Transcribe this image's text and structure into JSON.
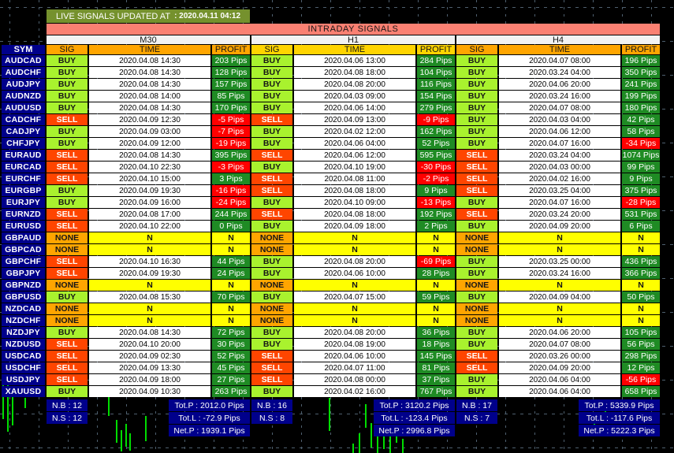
{
  "banner": {
    "label": "LIVE SIGNALS UPDATED AT",
    "time": ": 2020.04.11 04:12"
  },
  "title": "INTRADAY SIGNALS",
  "sym_header": "SYM",
  "columns": [
    "SIG",
    "TIME",
    "PROFIT"
  ],
  "timeframes": [
    {
      "label": "M30",
      "header_color": "#FFA500"
    },
    {
      "label": "H1",
      "header_color": "#FFD400"
    },
    {
      "label": "H4",
      "header_color": "#FFA500"
    }
  ],
  "rows": [
    {
      "sym": "AUDCAD",
      "signals": [
        {
          "sig": "BUY",
          "time": "2020.04.08 14:30",
          "profit": "203 Pips"
        },
        {
          "sig": "BUY",
          "time": "2020.04.06 13:00",
          "profit": "284 Pips"
        },
        {
          "sig": "BUY",
          "time": "2020.04.07 08:00",
          "profit": "196 Pips"
        }
      ]
    },
    {
      "sym": "AUDCHF",
      "signals": [
        {
          "sig": "BUY",
          "time": "2020.04.08 14:30",
          "profit": "128 Pips"
        },
        {
          "sig": "BUY",
          "time": "2020.04.08 18:00",
          "profit": "104 Pips"
        },
        {
          "sig": "BUY",
          "time": "2020.03.24 04:00",
          "profit": "350 Pips"
        }
      ]
    },
    {
      "sym": "AUDJPY",
      "signals": [
        {
          "sig": "BUY",
          "time": "2020.04.08 14:30",
          "profit": "157 Pips"
        },
        {
          "sig": "BUY",
          "time": "2020.04.08 20:00",
          "profit": "116 Pips"
        },
        {
          "sig": "BUY",
          "time": "2020.04.06 20:00",
          "profit": "241 Pips"
        }
      ]
    },
    {
      "sym": "AUDNZD",
      "signals": [
        {
          "sig": "BUY",
          "time": "2020.04.08 14:00",
          "profit": "85 Pips"
        },
        {
          "sig": "BUY",
          "time": "2020.04.03 09:00",
          "profit": "154 Pips"
        },
        {
          "sig": "BUY",
          "time": "2020.03.24 16:00",
          "profit": "199 Pips"
        }
      ]
    },
    {
      "sym": "AUDUSD",
      "signals": [
        {
          "sig": "BUY",
          "time": "2020.04.08 14:30",
          "profit": "170 Pips"
        },
        {
          "sig": "BUY",
          "time": "2020.04.06 14:00",
          "profit": "279 Pips"
        },
        {
          "sig": "BUY",
          "time": "2020.04.07 08:00",
          "profit": "180 Pips"
        }
      ]
    },
    {
      "sym": "CADCHF",
      "signals": [
        {
          "sig": "SELL",
          "time": "2020.04.09 12:30",
          "profit": "-5 Pips"
        },
        {
          "sig": "SELL",
          "time": "2020.04.09 13:00",
          "profit": "-9 Pips"
        },
        {
          "sig": "BUY",
          "time": "2020.04.03 04:00",
          "profit": "42 Pips"
        }
      ]
    },
    {
      "sym": "CADJPY",
      "signals": [
        {
          "sig": "BUY",
          "time": "2020.04.09 03:00",
          "profit": "-7 Pips"
        },
        {
          "sig": "BUY",
          "time": "2020.04.02 12:00",
          "profit": "162 Pips"
        },
        {
          "sig": "BUY",
          "time": "2020.04.06 12:00",
          "profit": "58 Pips"
        }
      ]
    },
    {
      "sym": "CHFJPY",
      "signals": [
        {
          "sig": "BUY",
          "time": "2020.04.09 12:00",
          "profit": "-19 Pips"
        },
        {
          "sig": "BUY",
          "time": "2020.04.06 04:00",
          "profit": "52 Pips"
        },
        {
          "sig": "BUY",
          "time": "2020.04.07 16:00",
          "profit": "-34 Pips"
        }
      ]
    },
    {
      "sym": "EURAUD",
      "signals": [
        {
          "sig": "SELL",
          "time": "2020.04.08 14:30",
          "profit": "395 Pips"
        },
        {
          "sig": "SELL",
          "time": "2020.04.06 12:00",
          "profit": "595 Pips"
        },
        {
          "sig": "SELL",
          "time": "2020.03.24 04:00",
          "profit": "1074 Pips"
        }
      ]
    },
    {
      "sym": "EURCAD",
      "signals": [
        {
          "sig": "SELL",
          "time": "2020.04.10 22:30",
          "profit": "-3 Pips"
        },
        {
          "sig": "BUY",
          "time": "2020.04.10 19:00",
          "profit": "-30 Pips"
        },
        {
          "sig": "SELL",
          "time": "2020.04.03 00:00",
          "profit": "99 Pips"
        }
      ]
    },
    {
      "sym": "EURCHF",
      "signals": [
        {
          "sig": "SELL",
          "time": "2020.04.10 15:00",
          "profit": "3 Pips"
        },
        {
          "sig": "SELL",
          "time": "2020.04.08 11:00",
          "profit": "-2 Pips"
        },
        {
          "sig": "SELL",
          "time": "2020.04.02 16:00",
          "profit": "9 Pips"
        }
      ]
    },
    {
      "sym": "EURGBP",
      "signals": [
        {
          "sig": "BUY",
          "time": "2020.04.09 19:30",
          "profit": "-16 Pips"
        },
        {
          "sig": "SELL",
          "time": "2020.04.08 18:00",
          "profit": "9 Pips"
        },
        {
          "sig": "SELL",
          "time": "2020.03.25 04:00",
          "profit": "375 Pips"
        }
      ]
    },
    {
      "sym": "EURJPY",
      "signals": [
        {
          "sig": "BUY",
          "time": "2020.04.09 16:00",
          "profit": "-24 Pips"
        },
        {
          "sig": "BUY",
          "time": "2020.04.10 09:00",
          "profit": "-13 Pips"
        },
        {
          "sig": "BUY",
          "time": "2020.04.07 16:00",
          "profit": "-28 Pips"
        }
      ]
    },
    {
      "sym": "EURNZD",
      "signals": [
        {
          "sig": "SELL",
          "time": "2020.04.08 17:00",
          "profit": "244 Pips"
        },
        {
          "sig": "SELL",
          "time": "2020.04.08 18:00",
          "profit": "192 Pips"
        },
        {
          "sig": "SELL",
          "time": "2020.03.24 20:00",
          "profit": "531 Pips"
        }
      ]
    },
    {
      "sym": "EURUSD",
      "signals": [
        {
          "sig": "SELL",
          "time": "2020.04.10 22:00",
          "profit": "0 Pips"
        },
        {
          "sig": "BUY",
          "time": "2020.04.09 18:00",
          "profit": "2 Pips"
        },
        {
          "sig": "BUY",
          "time": "2020.04.09 20:00",
          "profit": "6 Pips"
        }
      ]
    },
    {
      "sym": "GBPAUD",
      "signals": [
        {
          "sig": "NONE",
          "time": "N",
          "profit": "N"
        },
        {
          "sig": "NONE",
          "time": "N",
          "profit": "N"
        },
        {
          "sig": "NONE",
          "time": "N",
          "profit": "N"
        }
      ]
    },
    {
      "sym": "GBPCAD",
      "signals": [
        {
          "sig": "NONE",
          "time": "N",
          "profit": "N"
        },
        {
          "sig": "NONE",
          "time": "N",
          "profit": "N"
        },
        {
          "sig": "NONE",
          "time": "N",
          "profit": "N"
        }
      ]
    },
    {
      "sym": "GBPCHF",
      "signals": [
        {
          "sig": "SELL",
          "time": "2020.04.10 16:30",
          "profit": "44 Pips"
        },
        {
          "sig": "BUY",
          "time": "2020.04.08 20:00",
          "profit": "-69 Pips"
        },
        {
          "sig": "BUY",
          "time": "2020.03.25 00:00",
          "profit": "436 Pips"
        }
      ]
    },
    {
      "sym": "GBPJPY",
      "signals": [
        {
          "sig": "SELL",
          "time": "2020.04.09 19:30",
          "profit": "24 Pips"
        },
        {
          "sig": "BUY",
          "time": "2020.04.06 10:00",
          "profit": "28 Pips"
        },
        {
          "sig": "BUY",
          "time": "2020.03.24 16:00",
          "profit": "366 Pips"
        }
      ]
    },
    {
      "sym": "GBPNZD",
      "signals": [
        {
          "sig": "NONE",
          "time": "N",
          "profit": "N"
        },
        {
          "sig": "NONE",
          "time": "N",
          "profit": "N"
        },
        {
          "sig": "NONE",
          "time": "N",
          "profit": "N"
        }
      ]
    },
    {
      "sym": "GBPUSD",
      "signals": [
        {
          "sig": "BUY",
          "time": "2020.04.08 15:30",
          "profit": "70 Pips"
        },
        {
          "sig": "BUY",
          "time": "2020.04.07 15:00",
          "profit": "59 Pips"
        },
        {
          "sig": "BUY",
          "time": "2020.04.09 04:00",
          "profit": "50 Pips"
        }
      ]
    },
    {
      "sym": "NZDCAD",
      "signals": [
        {
          "sig": "NONE",
          "time": "N",
          "profit": "N"
        },
        {
          "sig": "NONE",
          "time": "N",
          "profit": "N"
        },
        {
          "sig": "NONE",
          "time": "N",
          "profit": "N"
        }
      ]
    },
    {
      "sym": "NZDCHF",
      "signals": [
        {
          "sig": "NONE",
          "time": "N",
          "profit": "N"
        },
        {
          "sig": "NONE",
          "time": "N",
          "profit": "N"
        },
        {
          "sig": "NONE",
          "time": "N",
          "profit": "N"
        }
      ]
    },
    {
      "sym": "NZDJPY",
      "signals": [
        {
          "sig": "BUY",
          "time": "2020.04.08 14:30",
          "profit": "72 Pips"
        },
        {
          "sig": "BUY",
          "time": "2020.04.08 20:00",
          "profit": "36 Pips"
        },
        {
          "sig": "BUY",
          "time": "2020.04.06 20:00",
          "profit": "105 Pips"
        }
      ]
    },
    {
      "sym": "NZDUSD",
      "signals": [
        {
          "sig": "SELL",
          "time": "2020.04.10 20:00",
          "profit": "30 Pips"
        },
        {
          "sig": "BUY",
          "time": "2020.04.08 19:00",
          "profit": "18 Pips"
        },
        {
          "sig": "BUY",
          "time": "2020.04.07 08:00",
          "profit": "56 Pips"
        }
      ]
    },
    {
      "sym": "USDCAD",
      "signals": [
        {
          "sig": "SELL",
          "time": "2020.04.09 02:30",
          "profit": "52 Pips"
        },
        {
          "sig": "SELL",
          "time": "2020.04.06 10:00",
          "profit": "145 Pips"
        },
        {
          "sig": "SELL",
          "time": "2020.03.26 00:00",
          "profit": "298 Pips"
        }
      ]
    },
    {
      "sym": "USDCHF",
      "signals": [
        {
          "sig": "SELL",
          "time": "2020.04.09 13:30",
          "profit": "45 Pips"
        },
        {
          "sig": "SELL",
          "time": "2020.04.07 11:00",
          "profit": "81 Pips"
        },
        {
          "sig": "SELL",
          "time": "2020.04.09 20:00",
          "profit": "12 Pips"
        }
      ]
    },
    {
      "sym": "USDJPY",
      "signals": [
        {
          "sig": "SELL",
          "time": "2020.04.09 18:00",
          "profit": "27 Pips"
        },
        {
          "sig": "SELL",
          "time": "2020.04.08 00:00",
          "profit": "37 Pips"
        },
        {
          "sig": "BUY",
          "time": "2020.04.06 04:00",
          "profit": "-56 Pips"
        }
      ]
    },
    {
      "sym": "XAUUSD",
      "signals": [
        {
          "sig": "BUY",
          "time": "2020.04.09 10:30",
          "profit": "263 Pips"
        },
        {
          "sig": "BUY",
          "time": "2020.04.02 16:00",
          "profit": "767 Pips"
        },
        {
          "sig": "BUY",
          "time": "2020.04.06 04:00",
          "profit": "658 Pips"
        }
      ]
    }
  ],
  "summary": [
    {
      "nb": "N.B : 12",
      "ns": "N.S : 12",
      "tot_p": "Tot.P : 2012.0 Pips",
      "tot_l": "Tot.L : -72.9 Pips",
      "net_p": "Net.P : 1939.1 Pips"
    },
    {
      "nb": "N.B : 16",
      "ns": "N.S : 8",
      "tot_p": "Tot.P : 3120.2 Pips",
      "tot_l": "Tot.L : -123.4 Pips",
      "net_p": "Net.P : 2996.8 Pips"
    },
    {
      "nb": "N.B : 17",
      "ns": "N.S : 7",
      "tot_p": "Tot.P : 5339.9 Pips",
      "tot_l": "Tot.L : -117.6 Pips",
      "net_p": "Net.P : 5222.3 Pips"
    }
  ],
  "colors": {
    "buy": "#A9F22E",
    "sell": "#FF4500",
    "none": "#FFA500",
    "n": "#FFFF00",
    "profit_pos": "#1F8B24",
    "profit_neg": "#FF0000",
    "navy": "#00008B",
    "banner": "#75912D",
    "title": "#FA8072",
    "tf_bg": "#F2F2F2",
    "time_bg": "#FFFFFF",
    "grid": "#4E5F6E",
    "candle": "#00DD00"
  }
}
